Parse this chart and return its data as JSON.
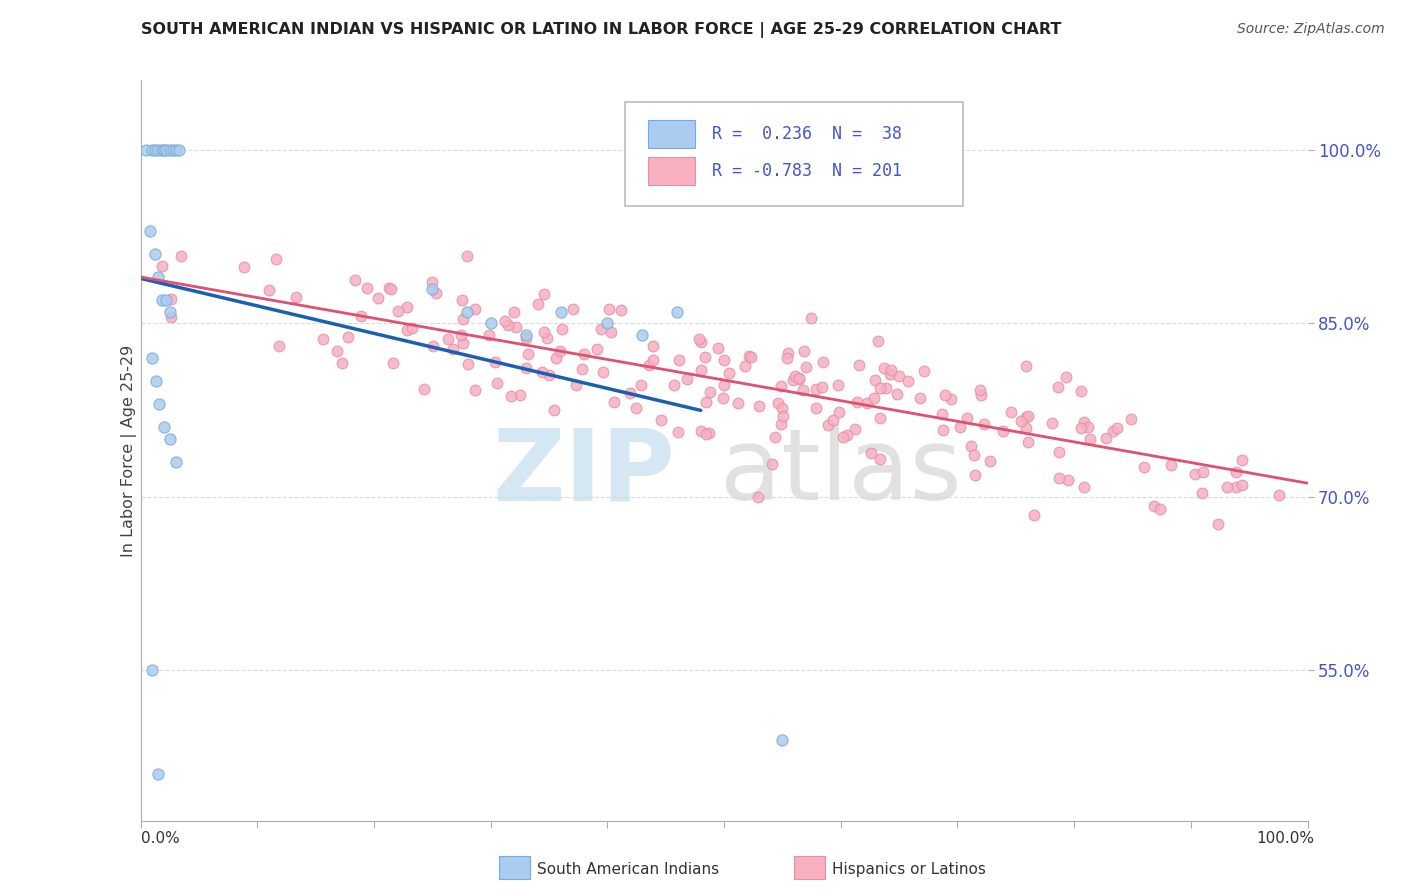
{
  "title": "SOUTH AMERICAN INDIAN VS HISPANIC OR LATINO IN LABOR FORCE | AGE 25-29 CORRELATION CHART",
  "source": "Source: ZipAtlas.com",
  "ylabel": "In Labor Force | Age 25-29",
  "xlim": [
    0.0,
    1.0
  ],
  "ylim": [
    0.42,
    1.06
  ],
  "yticks": [
    0.55,
    0.7,
    0.85,
    1.0
  ],
  "ytick_labels": [
    "55.0%",
    "70.0%",
    "85.0%",
    "100.0%"
  ],
  "blue_R": 0.236,
  "blue_N": 38,
  "pink_R": -0.783,
  "pink_N": 201,
  "blue_color": "#aaccf0",
  "pink_color": "#f8b0c0",
  "blue_line_color": "#1a5fb4",
  "pink_line_color": "#e05070",
  "watermark_zip_color": "#c8dff0",
  "watermark_atlas_color": "#d8d8d8",
  "bg_color": "#ffffff",
  "grid_color": "#cccccc",
  "ytick_color": "#4455cc",
  "title_color": "#222222",
  "source_color": "#555555",
  "ylabel_color": "#444444"
}
